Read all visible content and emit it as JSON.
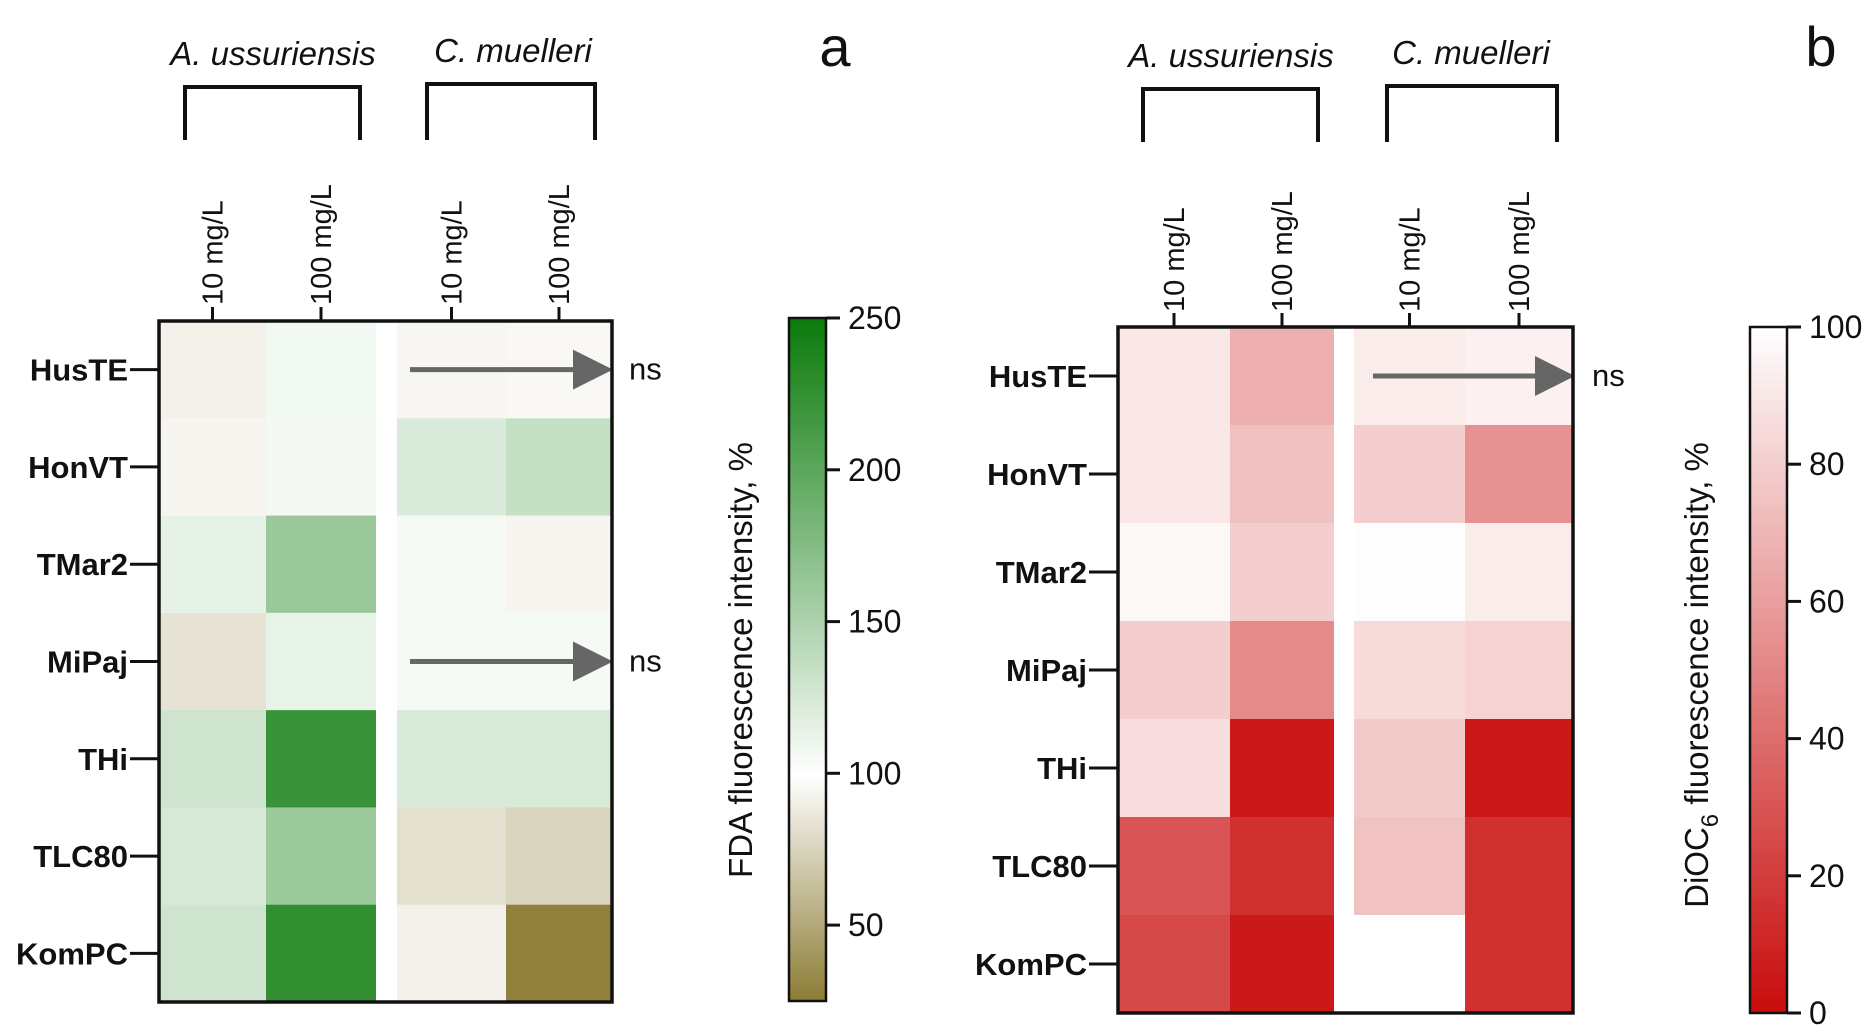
{
  "chart_data": [
    {
      "type": "heatmap",
      "panel_label": "a",
      "groups": [
        "A. ussuriensis",
        "C. muelleri"
      ],
      "columns": [
        "10 mg/L",
        "100 mg/L",
        "10 mg/L",
        "100 mg/L"
      ],
      "rows": [
        "HusTE",
        "HonVT",
        "TMar2",
        "MiPaj",
        "THi",
        "TLC80",
        "KomPC"
      ],
      "values": [
        [
          92,
          108,
          95,
          96
        ],
        [
          94,
          107,
          122,
          135
        ],
        [
          115,
          162,
          106,
          94
        ],
        [
          84,
          114,
          106,
          106
        ],
        [
          130,
          222,
          124,
          124
        ],
        [
          125,
          160,
          82,
          76
        ],
        [
          130,
          226,
          92,
          28
        ]
      ],
      "annotations": [
        {
          "row": "HusTE",
          "text": "ns"
        },
        {
          "row": "MiPaj",
          "text": "ns"
        }
      ],
      "colorbar": {
        "title": "FDA fluorescence intensity, %",
        "min": 25,
        "max": 250,
        "mid": 100,
        "ticks": [
          "50",
          "100",
          "150",
          "200",
          "250"
        ],
        "colors": {
          "low": "#8c7c35",
          "mid": "#ffffff",
          "high": "#0a7a0a"
        }
      }
    },
    {
      "type": "heatmap",
      "panel_label": "b",
      "groups": [
        "A. ussuriensis",
        "C. muelleri"
      ],
      "columns": [
        "10 mg/L",
        "100 mg/L",
        "10 mg/L",
        "100 mg/L"
      ],
      "rows": [
        "HusTE",
        "HonVT",
        "TMar2",
        "MiPaj",
        "THi",
        "TLC80",
        "KomPC"
      ],
      "values": [
        [
          90,
          67,
          92,
          94
        ],
        [
          90,
          74,
          80,
          55
        ],
        [
          97,
          80,
          99,
          92
        ],
        [
          80,
          52,
          85,
          82
        ],
        [
          86,
          5,
          78,
          5
        ],
        [
          30,
          15,
          75,
          15
        ],
        [
          25,
          5,
          100,
          15
        ]
      ],
      "annotations": [
        {
          "row": "HusTE",
          "text": "ns"
        }
      ],
      "colorbar": {
        "title_main": "DiOC",
        "title_sub": "6",
        "title_rest": " fluorescence intensity, %",
        "min": 0,
        "max": 100,
        "ticks": [
          "0",
          "20",
          "40",
          "60",
          "80",
          "100"
        ],
        "colors": {
          "low": "#c80c0c",
          "high": "#ffffff"
        }
      }
    }
  ]
}
